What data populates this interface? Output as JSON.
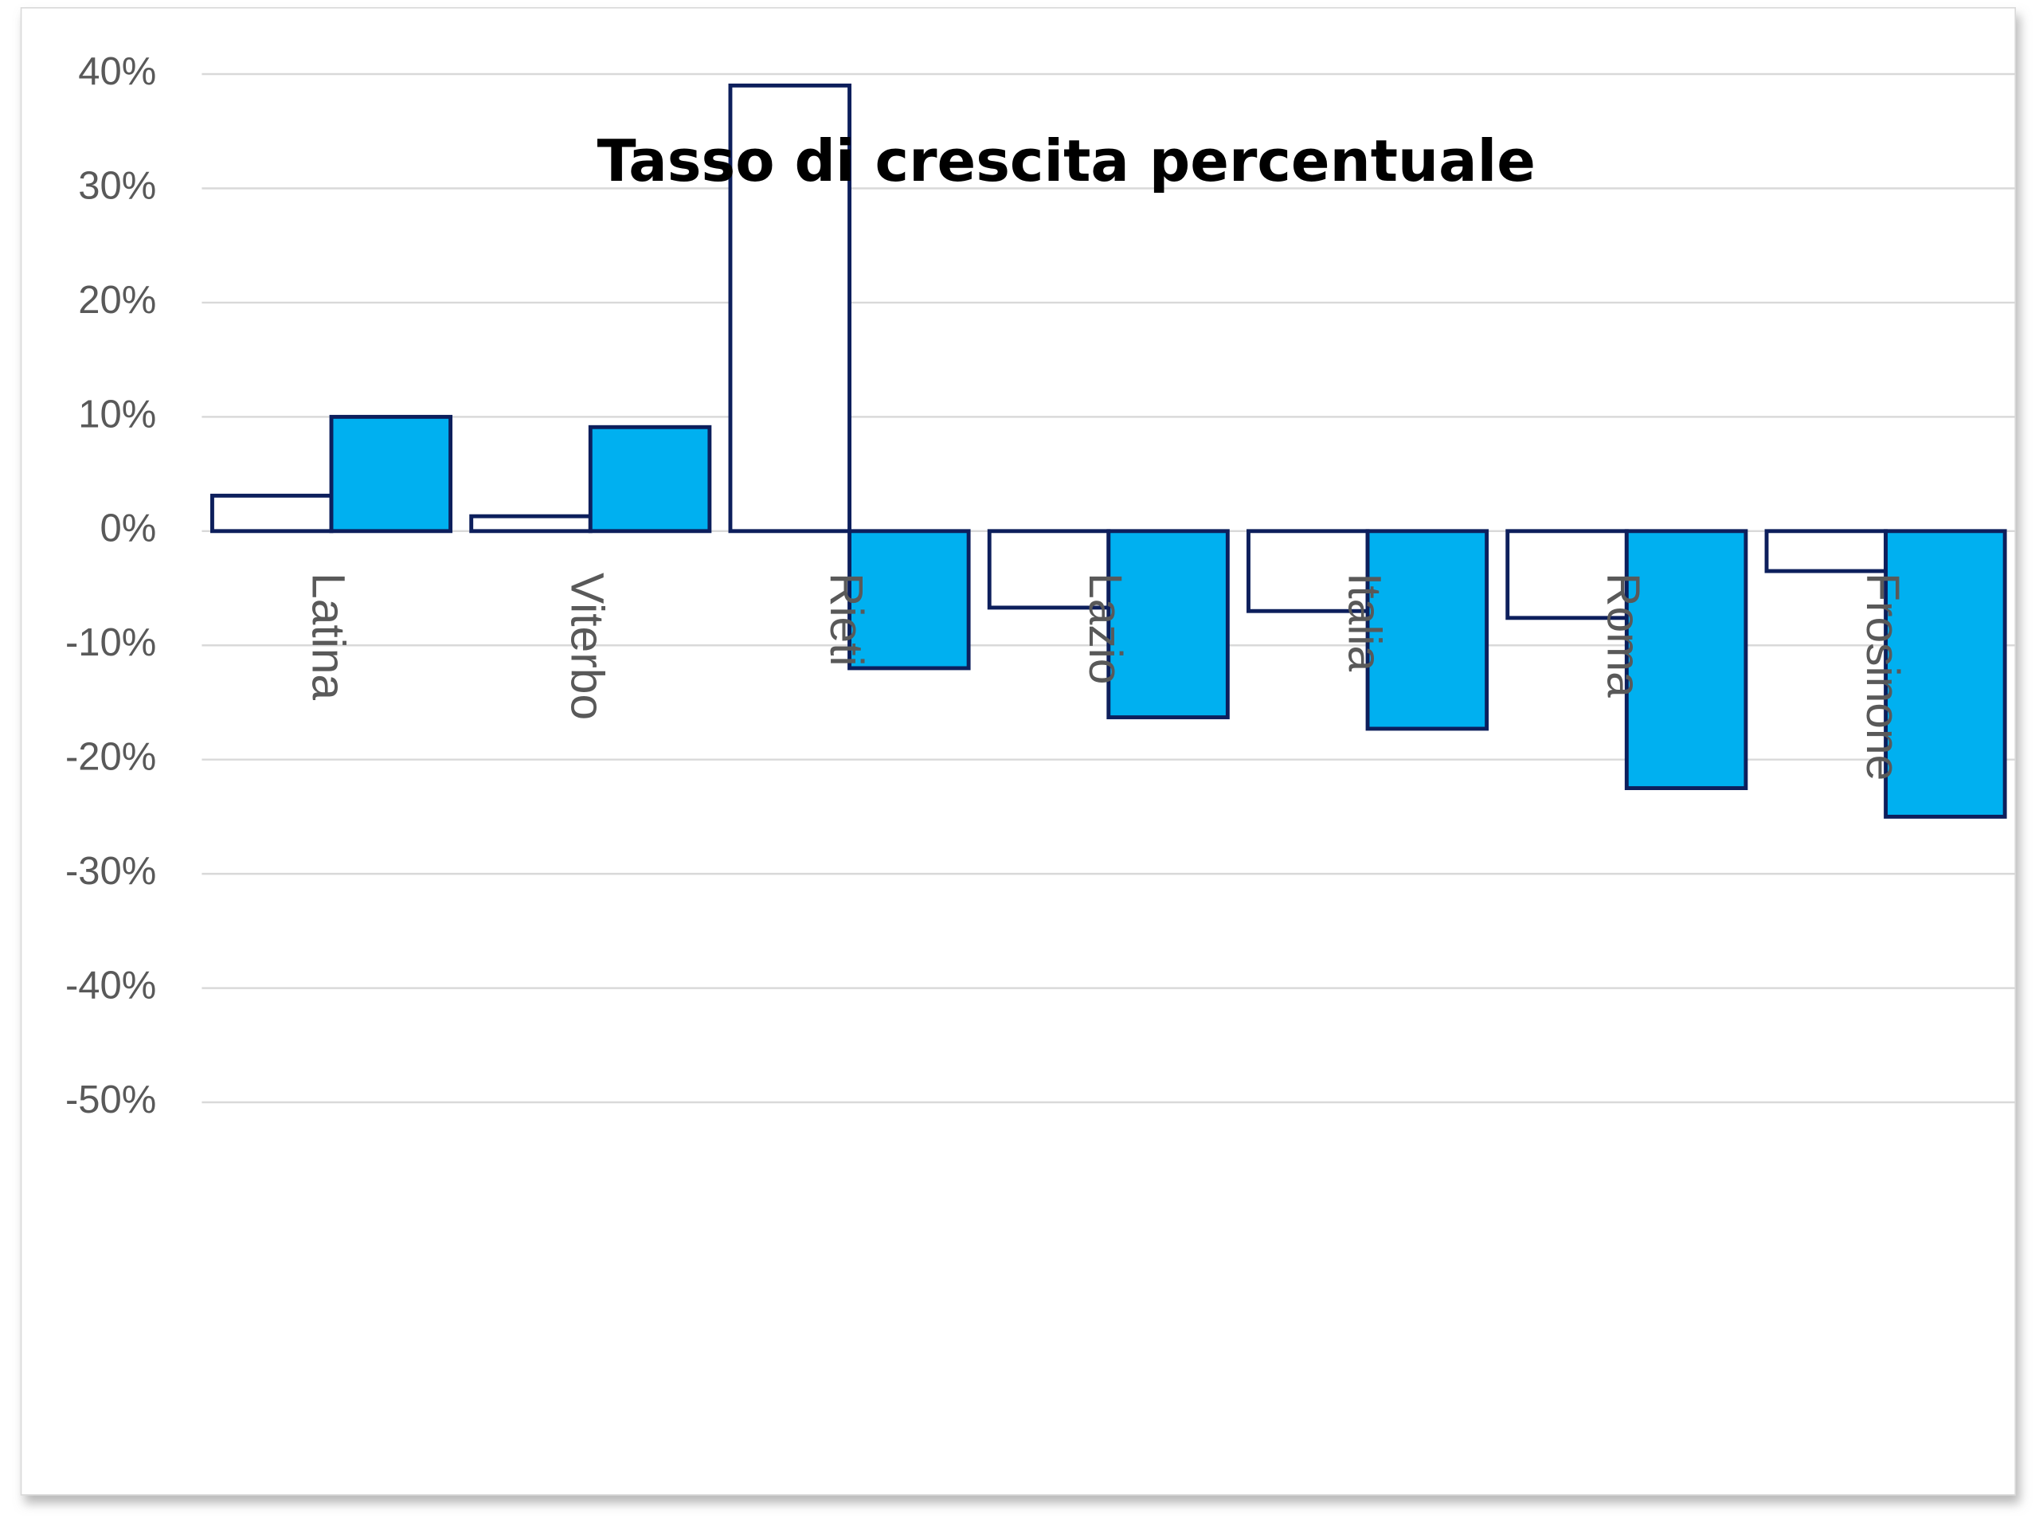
{
  "chart_data": {
    "type": "bar",
    "title": "Tasso di crescita percentuale",
    "categories": [
      "Latina",
      "Viterbo",
      "Rieti",
      "Lazio",
      "Italia",
      "Roma",
      "Frosinone"
    ],
    "series": [
      {
        "color": "#ffffff",
        "values": [
          3.1,
          1.3,
          39,
          -6.7,
          -7,
          -7.6,
          -3.5
        ]
      },
      {
        "color": "#00b0f0",
        "values": [
          10,
          9.1,
          -12,
          -16.3,
          -17.3,
          -22.5,
          -25
        ]
      }
    ],
    "ylim": [
      -50,
      40
    ],
    "yticks": [
      {
        "value": 40,
        "label": "40%"
      },
      {
        "value": 30,
        "label": "30%"
      },
      {
        "value": 20,
        "label": "20%"
      },
      {
        "value": 10,
        "label": "10%"
      },
      {
        "value": 0,
        "label": "0%"
      },
      {
        "value": -10,
        "label": "-10%"
      },
      {
        "value": -20,
        "label": "-20%"
      },
      {
        "value": -30,
        "label": "-30%"
      },
      {
        "value": -40,
        "label": "-40%"
      },
      {
        "value": -50,
        "label": "-50%"
      }
    ],
    "grid": true
  }
}
